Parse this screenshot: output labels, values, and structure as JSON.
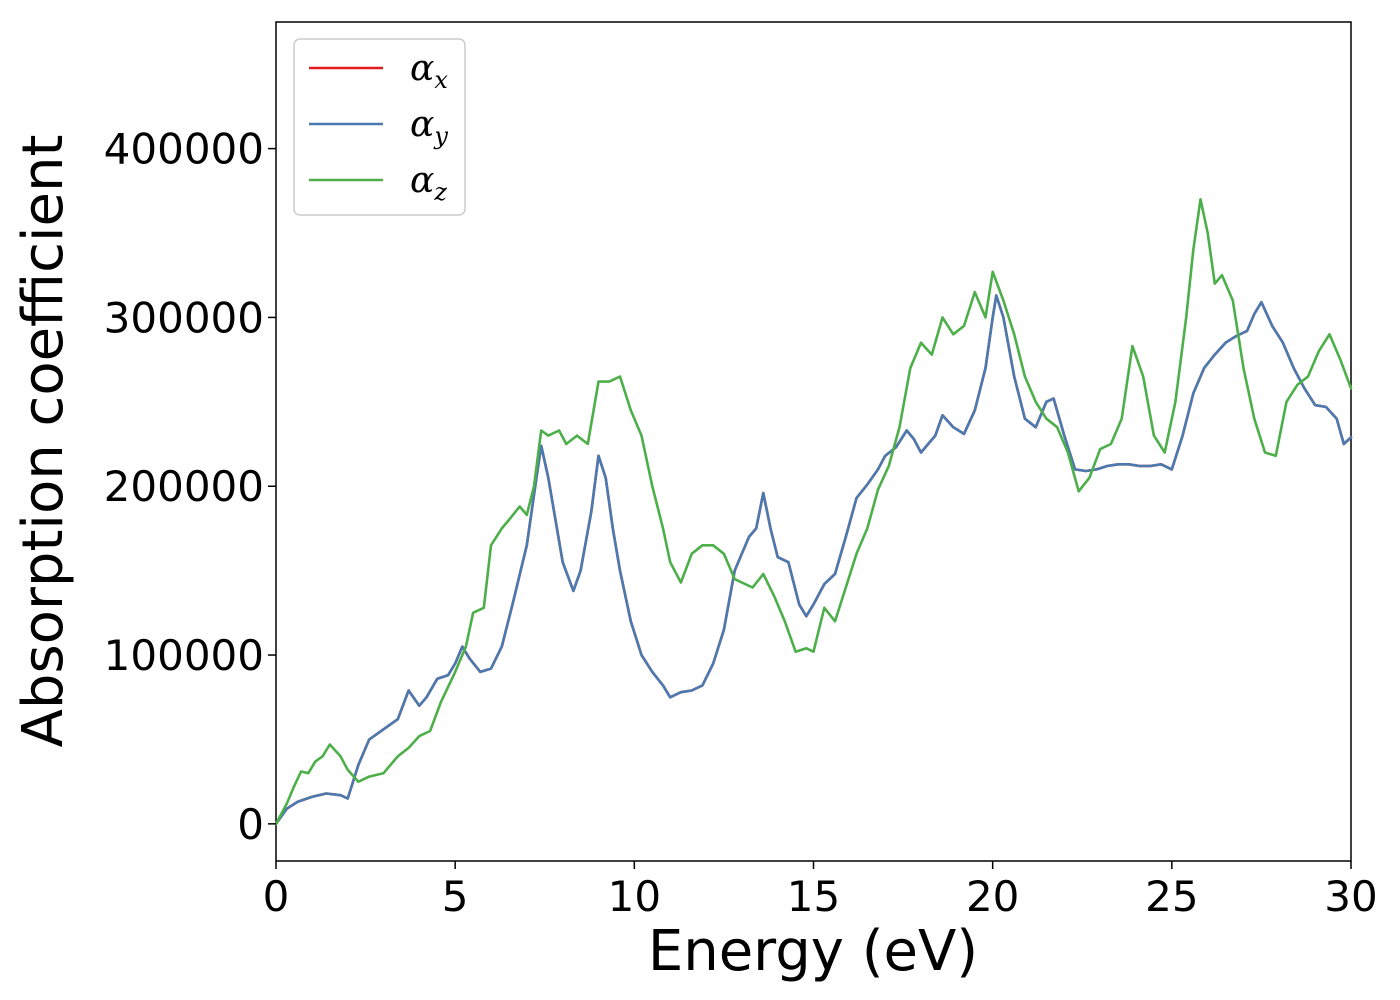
{
  "chart_data": {
    "type": "line",
    "xlabel": "Energy (eV)",
    "ylabel": "Absorption coefficient",
    "xlim": [
      0,
      30
    ],
    "ylim": [
      -22000,
      475000
    ],
    "xticks": [
      0,
      5,
      10,
      15,
      20,
      25,
      30
    ],
    "xtick_labels": [
      "0",
      "5",
      "10",
      "15",
      "20",
      "25",
      "30"
    ],
    "yticks": [
      0,
      100000,
      200000,
      300000,
      400000
    ],
    "ytick_labels": [
      "0",
      "100000",
      "200000",
      "300000",
      "400000"
    ],
    "grid": false,
    "legend_position": "top-left",
    "series": [
      {
        "name": "α",
        "subscript": "x",
        "color": "#e41a1c",
        "x": [
          0,
          0.3,
          0.6,
          1.0,
          1.4,
          1.8,
          2.0,
          2.3,
          2.6,
          3.0,
          3.4,
          3.7,
          4.0,
          4.2,
          4.5,
          4.8,
          5.0,
          5.2,
          5.4,
          5.7,
          6.0,
          6.3,
          6.6,
          7.0,
          7.2,
          7.4,
          7.6,
          7.8,
          8.0,
          8.3,
          8.5,
          8.8,
          9.0,
          9.2,
          9.4,
          9.6,
          9.9,
          10.2,
          10.5,
          10.8,
          11.0,
          11.1,
          11.3,
          11.6,
          11.9,
          12.2,
          12.5,
          12.8,
          13.0,
          13.2,
          13.4,
          13.6,
          13.8,
          14.0,
          14.3,
          14.6,
          14.8,
          15.0,
          15.3,
          15.6,
          15.9,
          16.2,
          16.5,
          16.8,
          17.0,
          17.3,
          17.6,
          17.8,
          18.0,
          18.2,
          18.4,
          18.6,
          18.9,
          19.2,
          19.5,
          19.8,
          20.0,
          20.1,
          20.3,
          20.6,
          20.9,
          21.2,
          21.5,
          21.7,
          22.0,
          22.3,
          22.6,
          22.9,
          23.2,
          23.5,
          23.8,
          24.1,
          24.4,
          24.7,
          25.0,
          25.3,
          25.6,
          25.9,
          26.2,
          26.5,
          26.8,
          27.1,
          27.3,
          27.5,
          27.8,
          28.1,
          28.4,
          28.7,
          29.0,
          29.3,
          29.6,
          29.8,
          30.0
        ],
        "y": [
          0,
          9000,
          13000,
          16000,
          18000,
          17000,
          15000,
          35000,
          50000,
          56000,
          62000,
          79000,
          70000,
          75000,
          86000,
          88000,
          95000,
          105000,
          98000,
          90000,
          92000,
          105000,
          130000,
          165000,
          195000,
          224000,
          205000,
          180000,
          155000,
          138000,
          150000,
          185000,
          218000,
          205000,
          175000,
          150000,
          120000,
          100000,
          90000,
          82000,
          75000,
          76000,
          78000,
          79000,
          82000,
          95000,
          115000,
          150000,
          160000,
          170000,
          175000,
          196000,
          175000,
          158000,
          155000,
          130000,
          123000,
          130000,
          142000,
          148000,
          170000,
          193000,
          201000,
          210000,
          218000,
          223000,
          233000,
          228000,
          220000,
          225000,
          230000,
          242000,
          235000,
          231000,
          245000,
          270000,
          300000,
          313000,
          300000,
          265000,
          240000,
          235000,
          250000,
          252000,
          230000,
          210000,
          209000,
          210000,
          212000,
          213000,
          213000,
          212000,
          212000,
          213000,
          210000,
          230000,
          255000,
          270000,
          278000,
          285000,
          289000,
          292000,
          302000,
          309000,
          295000,
          285000,
          270000,
          258000,
          248000,
          247000,
          240000,
          225000,
          229000
        ]
      },
      {
        "name": "α",
        "subscript": "y",
        "color": "#4a7bb0",
        "x": [
          0,
          0.3,
          0.6,
          1.0,
          1.4,
          1.8,
          2.0,
          2.3,
          2.6,
          3.0,
          3.4,
          3.7,
          4.0,
          4.2,
          4.5,
          4.8,
          5.0,
          5.2,
          5.4,
          5.7,
          6.0,
          6.3,
          6.6,
          7.0,
          7.2,
          7.4,
          7.6,
          7.8,
          8.0,
          8.3,
          8.5,
          8.8,
          9.0,
          9.2,
          9.4,
          9.6,
          9.9,
          10.2,
          10.5,
          10.8,
          11.0,
          11.1,
          11.3,
          11.6,
          11.9,
          12.2,
          12.5,
          12.8,
          13.0,
          13.2,
          13.4,
          13.6,
          13.8,
          14.0,
          14.3,
          14.6,
          14.8,
          15.0,
          15.3,
          15.6,
          15.9,
          16.2,
          16.5,
          16.8,
          17.0,
          17.3,
          17.6,
          17.8,
          18.0,
          18.2,
          18.4,
          18.6,
          18.9,
          19.2,
          19.5,
          19.8,
          20.0,
          20.1,
          20.3,
          20.6,
          20.9,
          21.2,
          21.5,
          21.7,
          22.0,
          22.3,
          22.6,
          22.9,
          23.2,
          23.5,
          23.8,
          24.1,
          24.4,
          24.7,
          25.0,
          25.3,
          25.6,
          25.9,
          26.2,
          26.5,
          26.8,
          27.1,
          27.3,
          27.5,
          27.8,
          28.1,
          28.4,
          28.7,
          29.0,
          29.3,
          29.6,
          29.8,
          30.0
        ],
        "y": [
          0,
          9000,
          13000,
          16000,
          18000,
          17000,
          15000,
          35000,
          50000,
          56000,
          62000,
          79000,
          70000,
          75000,
          86000,
          88000,
          95000,
          105000,
          98000,
          90000,
          92000,
          105000,
          130000,
          165000,
          195000,
          224000,
          205000,
          180000,
          155000,
          138000,
          150000,
          185000,
          218000,
          205000,
          175000,
          150000,
          120000,
          100000,
          90000,
          82000,
          75000,
          76000,
          78000,
          79000,
          82000,
          95000,
          115000,
          150000,
          160000,
          170000,
          175000,
          196000,
          175000,
          158000,
          155000,
          130000,
          123000,
          130000,
          142000,
          148000,
          170000,
          193000,
          201000,
          210000,
          218000,
          223000,
          233000,
          228000,
          220000,
          225000,
          230000,
          242000,
          235000,
          231000,
          245000,
          270000,
          300000,
          313000,
          300000,
          265000,
          240000,
          235000,
          250000,
          252000,
          230000,
          210000,
          209000,
          210000,
          212000,
          213000,
          213000,
          212000,
          212000,
          213000,
          210000,
          230000,
          255000,
          270000,
          278000,
          285000,
          289000,
          292000,
          302000,
          309000,
          295000,
          285000,
          270000,
          258000,
          248000,
          247000,
          240000,
          225000,
          229000
        ]
      },
      {
        "name": "α",
        "subscript": "z",
        "color": "#4daf4a",
        "x": [
          0,
          0.3,
          0.5,
          0.7,
          0.9,
          1.1,
          1.3,
          1.5,
          1.8,
          2.0,
          2.3,
          2.6,
          3.0,
          3.4,
          3.7,
          4.0,
          4.3,
          4.6,
          5.0,
          5.3,
          5.5,
          5.8,
          6.0,
          6.3,
          6.5,
          6.8,
          7.0,
          7.2,
          7.4,
          7.6,
          7.9,
          8.1,
          8.4,
          8.7,
          9.0,
          9.3,
          9.6,
          9.9,
          10.2,
          10.5,
          10.8,
          11.0,
          11.3,
          11.6,
          11.9,
          12.2,
          12.5,
          12.8,
          13.0,
          13.3,
          13.6,
          13.9,
          14.2,
          14.5,
          14.8,
          15.0,
          15.3,
          15.6,
          15.9,
          16.2,
          16.5,
          16.8,
          17.1,
          17.4,
          17.7,
          18.0,
          18.3,
          18.6,
          18.9,
          19.2,
          19.5,
          19.8,
          20.0,
          20.3,
          20.6,
          20.9,
          21.2,
          21.5,
          21.8,
          22.1,
          22.4,
          22.7,
          23.0,
          23.3,
          23.6,
          23.9,
          24.2,
          24.5,
          24.8,
          25.1,
          25.4,
          25.6,
          25.8,
          26.0,
          26.2,
          26.4,
          26.7,
          27.0,
          27.3,
          27.6,
          27.9,
          28.2,
          28.5,
          28.8,
          29.1,
          29.4,
          29.7,
          30.0
        ],
        "y": [
          0,
          12000,
          22000,
          31000,
          30000,
          37000,
          40000,
          47000,
          40000,
          32000,
          25000,
          28000,
          30000,
          40000,
          45000,
          52000,
          55000,
          72000,
          90000,
          105000,
          125000,
          128000,
          165000,
          175000,
          180000,
          188000,
          183000,
          200000,
          233000,
          230000,
          233000,
          225000,
          230000,
          225000,
          262000,
          262000,
          265000,
          245000,
          230000,
          200000,
          175000,
          155000,
          143000,
          160000,
          165000,
          165000,
          160000,
          145000,
          143000,
          140000,
          148000,
          135000,
          120000,
          102000,
          104000,
          102000,
          128000,
          120000,
          140000,
          160000,
          175000,
          198000,
          212000,
          235000,
          270000,
          285000,
          278000,
          300000,
          290000,
          295000,
          315000,
          300000,
          327000,
          310000,
          290000,
          265000,
          250000,
          240000,
          235000,
          220000,
          197000,
          205000,
          222000,
          225000,
          240000,
          283000,
          265000,
          230000,
          220000,
          250000,
          300000,
          340000,
          370000,
          350000,
          320000,
          325000,
          310000,
          270000,
          240000,
          220000,
          218000,
          250000,
          260000,
          265000,
          280000,
          290000,
          275000,
          258000
        ]
      }
    ]
  }
}
